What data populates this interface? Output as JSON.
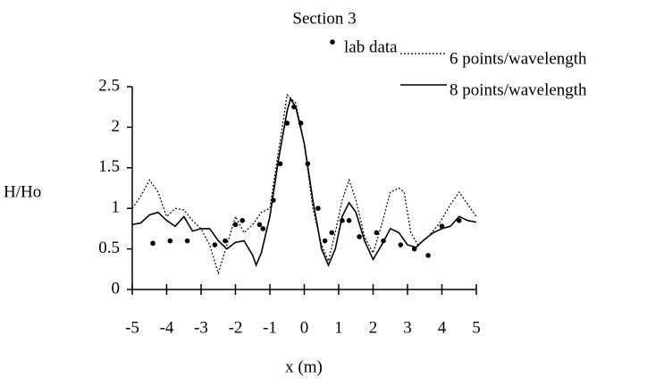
{
  "chart_data": {
    "type": "line",
    "title": "Section 3",
    "xlabel": "x (m)",
    "ylabel": "H/Ho",
    "xlim": [
      -5,
      5
    ],
    "xticks": [
      -5,
      -4,
      -3,
      -2,
      -1,
      0,
      1,
      2,
      3,
      4,
      5
    ],
    "ylim": [
      0,
      2.5
    ],
    "yticks": [
      0,
      0.5,
      1,
      1.5,
      2,
      2.5
    ],
    "grid": false,
    "series": [
      {
        "name": "lab data",
        "color": "#000000",
        "mode": "markers",
        "x": [
          -4.4,
          -3.9,
          -3.4,
          -2.6,
          -2.3,
          -2.0,
          -1.8,
          -1.3,
          -1.2,
          -0.9,
          -0.7,
          -0.5,
          -0.3,
          -0.1,
          0.1,
          0.4,
          0.6,
          0.8,
          1.1,
          1.3,
          1.6,
          2.1,
          2.3,
          2.8,
          3.2,
          3.6,
          4.0,
          4.5
        ],
        "values": [
          0.57,
          0.6,
          0.6,
          0.55,
          0.6,
          0.8,
          0.85,
          0.8,
          0.75,
          1.1,
          1.55,
          2.05,
          2.25,
          2.05,
          1.55,
          1.0,
          0.6,
          0.7,
          0.85,
          0.85,
          0.65,
          0.7,
          0.6,
          0.55,
          0.5,
          0.42,
          0.78,
          0.85
        ]
      },
      {
        "name": "6 points/wavelength",
        "color": "#000000",
        "mode": "dotted",
        "x": [
          -5,
          -4.75,
          -4.5,
          -4.25,
          -4,
          -3.75,
          -3.5,
          -3.25,
          -3,
          -2.75,
          -2.5,
          -2.25,
          -2,
          -1.75,
          -1.5,
          -1.25,
          -1,
          -0.75,
          -0.5,
          -0.25,
          0,
          0.25,
          0.5,
          0.7,
          0.9,
          1.1,
          1.3,
          1.5,
          1.75,
          2,
          2.25,
          2.5,
          2.75,
          2.9,
          3.1,
          3.3,
          3.6,
          3.9,
          4.25,
          4.5,
          4.75,
          5
        ],
        "values": [
          1.0,
          1.15,
          1.35,
          1.2,
          0.9,
          1.0,
          0.98,
          0.85,
          0.75,
          0.55,
          0.2,
          0.55,
          0.9,
          0.7,
          0.8,
          0.95,
          1.0,
          1.7,
          2.4,
          2.3,
          1.8,
          1.0,
          0.55,
          0.35,
          0.7,
          1.1,
          1.35,
          1.1,
          0.65,
          0.45,
          0.8,
          1.2,
          1.25,
          1.2,
          0.7,
          0.55,
          0.65,
          0.8,
          1.05,
          1.2,
          1.05,
          0.9
        ]
      },
      {
        "name": "8 points/wavelength",
        "color": "#000000",
        "mode": "solid",
        "x": [
          -5,
          -4.75,
          -4.5,
          -4.25,
          -4,
          -3.75,
          -3.5,
          -3.25,
          -3,
          -2.75,
          -2.5,
          -2.25,
          -2,
          -1.75,
          -1.5,
          -1.4,
          -1.25,
          -1,
          -0.75,
          -0.5,
          -0.4,
          -0.25,
          0,
          0.25,
          0.5,
          0.7,
          0.9,
          1.1,
          1.3,
          1.5,
          1.75,
          2,
          2.25,
          2.5,
          2.75,
          3,
          3.25,
          3.5,
          3.75,
          4,
          4.25,
          4.5,
          4.75,
          5
        ],
        "values": [
          0.8,
          0.82,
          0.92,
          0.95,
          0.85,
          0.78,
          0.9,
          0.72,
          0.75,
          0.75,
          0.6,
          0.5,
          0.58,
          0.6,
          0.42,
          0.3,
          0.45,
          0.9,
          1.6,
          2.2,
          2.35,
          2.25,
          1.8,
          1.1,
          0.5,
          0.3,
          0.5,
          0.9,
          1.07,
          0.95,
          0.6,
          0.37,
          0.55,
          0.75,
          0.7,
          0.55,
          0.52,
          0.62,
          0.7,
          0.75,
          0.78,
          0.9,
          0.85,
          0.83
        ]
      }
    ]
  }
}
